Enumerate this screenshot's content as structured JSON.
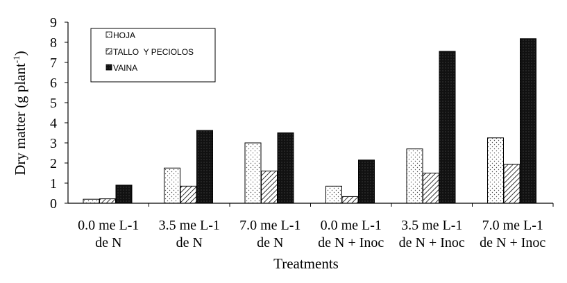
{
  "chart_data": {
    "type": "bar",
    "ylabel": "Dry matter (g plant",
    "ylabel_sup": "-1",
    "ylabel_close": ")",
    "xlabel": "Treatments",
    "ylim": [
      0,
      9
    ],
    "yticks": [
      "0",
      "1",
      "2",
      "3",
      "4",
      "5",
      "6",
      "7",
      "8",
      "9"
    ],
    "grid": false,
    "legend_position": "top-left",
    "categories": [
      [
        "0.0 me L-1",
        "de N"
      ],
      [
        "3.5 me L-1",
        "de N"
      ],
      [
        "7.0 me L-1",
        "de N"
      ],
      [
        "0.0 me L-1",
        "de N + Inoc"
      ],
      [
        "3.5 me L-1",
        "de N + Inoc"
      ],
      [
        "7.0 me L-1",
        "de N + Inoc"
      ]
    ],
    "series": [
      {
        "name": "HOJA",
        "pattern": "dots",
        "values": [
          0.2,
          1.75,
          3.0,
          0.85,
          2.7,
          3.25
        ]
      },
      {
        "name": "TALLO  Y PECIOLOS",
        "pattern": "hatch",
        "values": [
          0.22,
          0.85,
          1.6,
          0.33,
          1.5,
          1.93
        ]
      },
      {
        "name": "VAINA",
        "pattern": "dark",
        "values": [
          0.9,
          3.62,
          3.5,
          2.15,
          7.55,
          8.18
        ]
      }
    ],
    "colors": {
      "axis": "#000000",
      "dark_fill": "#111111",
      "background": "#ffffff"
    }
  }
}
